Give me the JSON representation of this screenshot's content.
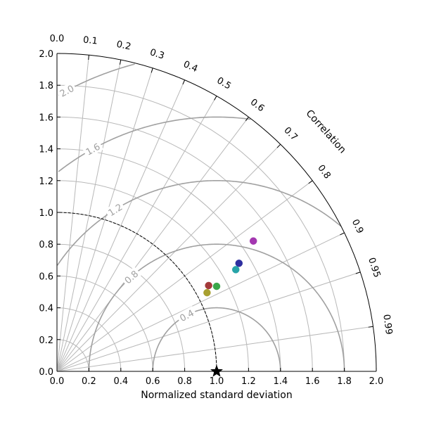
{
  "chart_data": {
    "type": "scatter",
    "subtype": "taylor-diagram",
    "title": "",
    "xlabel": "Normalized standard deviation",
    "ylabel": "",
    "correlation_label": "Correlation",
    "xlim": [
      0.0,
      2.0
    ],
    "ylim": [
      0.0,
      2.0
    ],
    "x_ticks": [
      "0.0",
      "0.2",
      "0.4",
      "0.6",
      "0.8",
      "1.0",
      "1.2",
      "1.4",
      "1.6",
      "1.8",
      "2.0"
    ],
    "y_ticks": [
      "0.0",
      "0.2",
      "0.4",
      "0.6",
      "0.8",
      "1.0",
      "1.2",
      "1.4",
      "1.6",
      "1.8",
      "2.0"
    ],
    "correlation_ticks": [
      "0.0",
      "0.1",
      "0.2",
      "0.3",
      "0.4",
      "0.5",
      "0.6",
      "0.7",
      "0.8",
      "0.9",
      "0.95",
      "0.99"
    ],
    "std_grid": [
      0.2,
      0.4,
      0.6,
      0.8,
      1.0,
      1.2,
      1.4,
      1.6,
      1.8
    ],
    "rms_contours": [
      0.4,
      0.8,
      1.2,
      1.6,
      2.0
    ],
    "rms_contour_labels": [
      "0.4",
      "0.8",
      "1.2",
      "1.6",
      "2.0"
    ],
    "grid": true,
    "reference": {
      "std": 1.0,
      "correlation": 1.0,
      "marker": "star",
      "color": "#000000"
    },
    "reference_arc_std": 1.0,
    "points": [
      {
        "x": 1.23,
        "y": 0.82,
        "color": "#a337b0"
      },
      {
        "x": 1.14,
        "y": 0.68,
        "color": "#2e2fa0"
      },
      {
        "x": 1.12,
        "y": 0.64,
        "color": "#27a4a8"
      },
      {
        "x": 0.95,
        "y": 0.54,
        "color": "#a33a3a"
      },
      {
        "x": 1.0,
        "y": 0.535,
        "color": "#3aa74a"
      },
      {
        "x": 0.94,
        "y": 0.495,
        "color": "#a8a030"
      }
    ],
    "colors": {
      "grid": "#b8b8b8",
      "rms": "#a0a0a0",
      "axis": "#000000"
    }
  }
}
